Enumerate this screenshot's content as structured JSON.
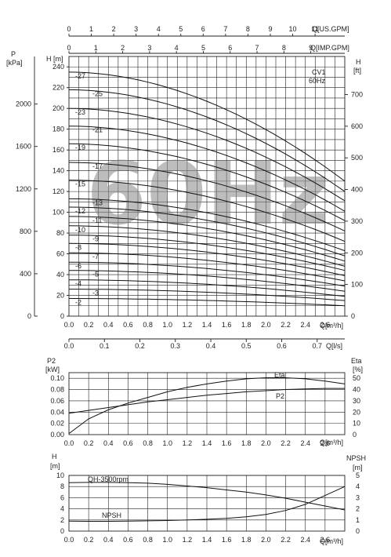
{
  "chart_data": [
    {
      "type": "line",
      "id": "head",
      "model": "CV1",
      "frequency": "60Hz",
      "watermark": "60Hz",
      "x_units": "Q[m³/h]",
      "x_top_units_1": "Q[US.GPM]",
      "x_top_units_2": "Q[IMP.GPM]",
      "x_ls_units": "Q[l/s]",
      "y_left_units": "H [m]",
      "y_left_outer_label": "P",
      "y_left_outer_units": "[kPa]",
      "y_right_label": "H",
      "y_right_units": "[ft]",
      "xlim": [
        0,
        2.8
      ],
      "ylim": [
        0,
        250
      ],
      "x_ticks": [
        "0.0",
        "0.2",
        "0.4",
        "0.6",
        "0.8",
        "1.0",
        "1.2",
        "1.4",
        "1.6",
        "1.8",
        "2.0",
        "2.2",
        "2.4",
        "2.6"
      ],
      "y_ticks": [
        "0",
        "20",
        "40",
        "60",
        "80",
        "100",
        "120",
        "140",
        "160",
        "180",
        "200",
        "220",
        "240"
      ],
      "usgpm_ticks": [
        "0",
        "1",
        "2",
        "3",
        "4",
        "5",
        "6",
        "7",
        "8",
        "9",
        "10",
        "11"
      ],
      "impgpm_ticks": [
        "0",
        "1",
        "2",
        "3",
        "4",
        "5",
        "6",
        "7",
        "8",
        "9"
      ],
      "kpa_ticks": [
        "0",
        "400",
        "800",
        "1200",
        "1600",
        "2000"
      ],
      "ft_ticks": [
        "0",
        "100",
        "200",
        "300",
        "400",
        "500",
        "600",
        "700"
      ],
      "ls_ticks": [
        "0.0",
        "0.1",
        "0.2",
        "0.3",
        "0.4",
        "0.5",
        "0.6",
        "0.7"
      ],
      "stages": [
        {
          "label": "-27",
          "shutoff": 235,
          "end": 130
        },
        {
          "label": "-25",
          "shutoff": 218,
          "end": 120
        },
        {
          "label": "-23",
          "shutoff": 200,
          "end": 111
        },
        {
          "label": "-21",
          "shutoff": 183,
          "end": 101
        },
        {
          "label": "-19",
          "shutoff": 166,
          "end": 92
        },
        {
          "label": "-17",
          "shutoff": 148,
          "end": 82
        },
        {
          "label": "-15",
          "shutoff": 131,
          "end": 72
        },
        {
          "label": "-13",
          "shutoff": 113,
          "end": 63
        },
        {
          "label": "-12",
          "shutoff": 105,
          "end": 58
        },
        {
          "label": "-11",
          "shutoff": 96,
          "end": 53
        },
        {
          "label": "-10",
          "shutoff": 87,
          "end": 48
        },
        {
          "label": "-9",
          "shutoff": 78,
          "end": 44
        },
        {
          "label": "-8",
          "shutoff": 70,
          "end": 39
        },
        {
          "label": "-7",
          "shutoff": 61,
          "end": 34
        },
        {
          "label": "-6",
          "shutoff": 52,
          "end": 29
        },
        {
          "label": "-5",
          "shutoff": 44,
          "end": 24
        },
        {
          "label": "-4",
          "shutoff": 35,
          "end": 19
        },
        {
          "label": "-3",
          "shutoff": 26,
          "end": 15
        },
        {
          "label": "-2",
          "shutoff": 17,
          "end": 10
        }
      ]
    },
    {
      "type": "line",
      "id": "power",
      "y_left_label": "P2",
      "y_left_units": "[kW]",
      "y_right_label": "Eta",
      "y_right_units": "[%]",
      "x_units": "Q[m³/h]",
      "xlim": [
        0,
        2.8
      ],
      "ylim": [
        0,
        0.11
      ],
      "y2lim": [
        0,
        55
      ],
      "y_ticks": [
        "0.00",
        "0.02",
        "0.04",
        "0.06",
        "0.08",
        "0.10"
      ],
      "y2_ticks": [
        "0",
        "10",
        "20",
        "30",
        "40",
        "50"
      ],
      "x_ticks": [
        "0.0",
        "0.2",
        "0.4",
        "0.6",
        "0.8",
        "1.0",
        "1.2",
        "1.4",
        "1.6",
        "1.8",
        "2.0",
        "2.2",
        "2.4",
        "2.6"
      ],
      "series": [
        {
          "name": "P2",
          "axis": "left",
          "x": [
            0,
            0.2,
            0.4,
            0.6,
            0.8,
            1.0,
            1.2,
            1.4,
            1.6,
            1.8,
            2.0,
            2.2,
            2.4,
            2.6,
            2.8
          ],
          "values": [
            0.038,
            0.043,
            0.048,
            0.053,
            0.058,
            0.062,
            0.066,
            0.07,
            0.073,
            0.076,
            0.078,
            0.08,
            0.081,
            0.082,
            0.082
          ]
        },
        {
          "name": "Eta",
          "axis": "right",
          "x": [
            0,
            0.2,
            0.4,
            0.6,
            0.8,
            1.0,
            1.2,
            1.4,
            1.6,
            1.8,
            2.0,
            2.2,
            2.4,
            2.6,
            2.8
          ],
          "values": [
            1,
            14,
            22,
            28,
            33,
            38,
            42,
            45,
            47.5,
            49.5,
            50.5,
            50.5,
            49.5,
            47.5,
            45
          ]
        }
      ]
    },
    {
      "type": "line",
      "id": "npsh",
      "y_left_label": "H",
      "y_left_units": "[m]",
      "y_right_label": "NPSH",
      "y_right_units": "[m]",
      "x_units": "Q[m³/h]",
      "xlim": [
        0,
        2.8
      ],
      "ylim": [
        0,
        10
      ],
      "y2lim": [
        0,
        5
      ],
      "y_ticks": [
        "0",
        "2",
        "4",
        "6",
        "8",
        "10"
      ],
      "y2_ticks": [
        "0",
        "1",
        "2",
        "3",
        "4",
        "5"
      ],
      "x_ticks": [
        "0.0",
        "0.2",
        "0.4",
        "0.6",
        "0.8",
        "1.0",
        "1.2",
        "1.4",
        "1.6",
        "1.8",
        "2.0",
        "2.2",
        "2.4",
        "2.6"
      ],
      "series": [
        {
          "name": "QH-3500rpm",
          "axis": "left",
          "x": [
            0,
            0.2,
            0.4,
            0.6,
            0.8,
            1.0,
            1.2,
            1.4,
            1.6,
            1.8,
            2.0,
            2.2,
            2.4,
            2.6,
            2.8
          ],
          "values": [
            8.7,
            8.75,
            8.75,
            8.7,
            8.6,
            8.4,
            8.1,
            7.8,
            7.4,
            7.0,
            6.5,
            5.9,
            5.2,
            4.5,
            3.8
          ]
        },
        {
          "name": "NPSH",
          "axis": "right",
          "x": [
            0,
            0.2,
            0.4,
            0.6,
            0.8,
            1.0,
            1.2,
            1.4,
            1.6,
            1.8,
            2.0,
            2.2,
            2.4,
            2.6,
            2.8
          ],
          "values": [
            0.9,
            0.88,
            0.88,
            0.9,
            0.92,
            0.95,
            1.0,
            1.06,
            1.15,
            1.28,
            1.5,
            1.85,
            2.4,
            3.2,
            4.0
          ]
        }
      ]
    }
  ]
}
